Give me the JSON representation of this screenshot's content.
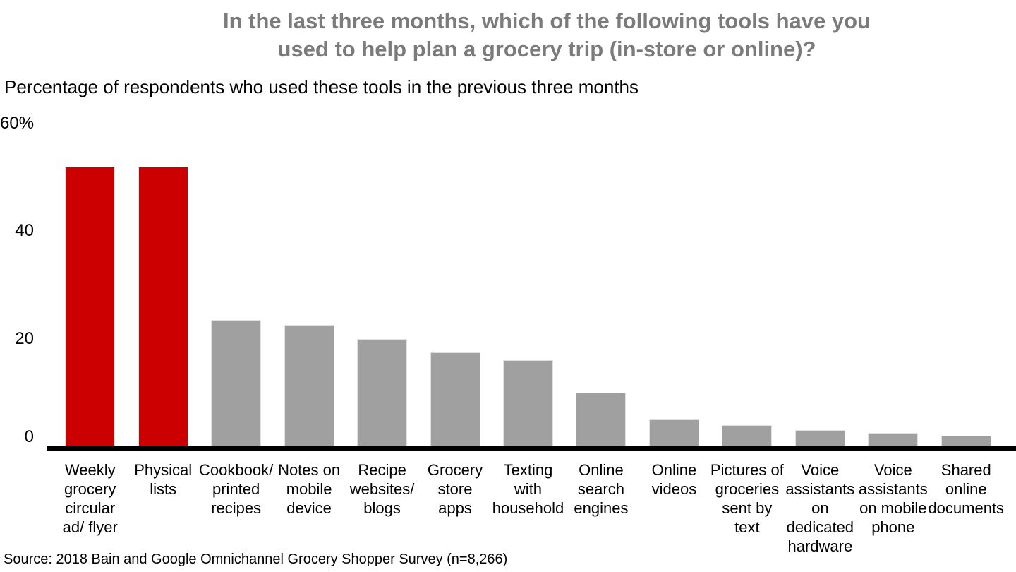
{
  "chart_data": {
    "type": "bar",
    "title": "In the last three months, which of the following tools have you used to help plan a grocery trip (in-store or online)?",
    "title_lines": [
      "In the last three months, which of the following tools have you",
      "used to help plan a grocery trip (in-store or online)?"
    ],
    "subtitle": "Percentage of respondents who used these tools in the previous three months",
    "source": "Source: 2018 Bain and Google Omnichannel Grocery Shopper Survey (n=8,266)",
    "ylabel": "Percentage of respondents",
    "xlabel": "",
    "ylim": [
      0,
      60
    ],
    "grid": false,
    "legend": null,
    "yticks": [
      {
        "value": 60,
        "label": "60%"
      },
      {
        "value": 40,
        "label": "40"
      },
      {
        "value": 20,
        "label": "20"
      },
      {
        "value": 0,
        "label": "0"
      }
    ],
    "categories": [
      "Weekly grocery circular ad/ flyer",
      "Physical lists",
      "Cookbook/ printed recipes",
      "Notes on mobile device",
      "Recipe websites/ blogs",
      "Grocery store apps",
      "Texting with household",
      "Online search engines",
      "Online videos",
      "Pictures of groceries sent by text",
      "Voice assistants on dedicated hardware",
      "Voice assistants on mobile phone",
      "Shared online documents"
    ],
    "values": [
      52,
      52,
      23.5,
      22.5,
      20,
      17.5,
      16,
      10,
      5,
      4,
      3,
      2.5,
      2
    ],
    "label_lines": [
      [
        "Weekly",
        "grocery",
        "circular",
        "ad/ flyer"
      ],
      [
        "Physical",
        "lists"
      ],
      [
        "Cookbook/",
        "printed",
        "recipes"
      ],
      [
        "Notes on",
        "mobile",
        "device"
      ],
      [
        "Recipe",
        "websites/",
        "blogs"
      ],
      [
        "Grocery",
        "store",
        "apps"
      ],
      [
        "Texting",
        "with",
        "household"
      ],
      [
        "Online",
        "search",
        "engines"
      ],
      [
        "Online",
        "videos"
      ],
      [
        "Pictures of",
        "groceries",
        "sent by",
        "text"
      ],
      [
        "Voice",
        "assistants",
        "on",
        "dedicated",
        "hardware"
      ],
      [
        "Voice",
        "assistants",
        "on mobile",
        "phone"
      ],
      [
        "Shared",
        "online",
        "documents"
      ]
    ],
    "highlighted_indexes": [
      0,
      1
    ],
    "colors": {
      "highlight": "#cc0000",
      "default": "#a0a0a0",
      "title": "#7b7b7b",
      "axis": "#000000",
      "background": "#ffffff"
    }
  }
}
